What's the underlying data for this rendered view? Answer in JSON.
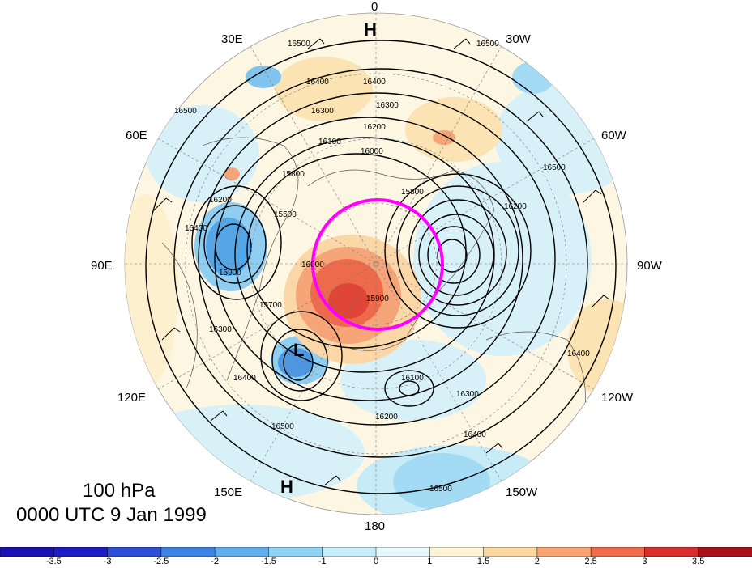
{
  "longitude_labels": {
    "lon_0": "0",
    "lon_30w": "30W",
    "lon_60w": "60W",
    "lon_90w": "90W",
    "lon_120w": "120W",
    "lon_150w": "150W",
    "lon_180": "180",
    "lon_150e": "150E",
    "lon_120e": "120E",
    "lon_90e": "90E",
    "lon_60e": "60E",
    "lon_30e": "30E"
  },
  "pressure_systems": {
    "high_top": "H",
    "high_bottom": "H",
    "low_center": "L"
  },
  "contour_labels": [
    "16500",
    "16500",
    "16400",
    "16400",
    "16300",
    "16300",
    "16200",
    "16100",
    "16000",
    "15800",
    "15800",
    "15700",
    "15500",
    "16500",
    "16400",
    "16200",
    "15900",
    "16000",
    "16300",
    "16400",
    "16500",
    "16200",
    "16100",
    "16300",
    "16400",
    "16500",
    "16200",
    "16400",
    "15900",
    "16500"
  ],
  "caption": {
    "level": "100 hPa",
    "time": "0000 UTC 9 Jan 1999"
  },
  "colorbar": {
    "ticks": [
      "-3.5",
      "-3",
      "-2.5",
      "-2",
      "-1.5",
      "-1",
      "0",
      "1",
      "1.5",
      "2",
      "2.5",
      "3",
      "3.5"
    ],
    "colors": [
      "#1d1bc4",
      "#2d4fd6",
      "#3f84e3",
      "#63aeec",
      "#91d3f2",
      "#c6eef8",
      "#e7f8fb",
      "#fdf5d6",
      "#fad8a0",
      "#f7a574",
      "#ef6c4e",
      "#d62f2c",
      "#a8101c"
    ]
  },
  "highlight_color": "#ff00ff"
}
